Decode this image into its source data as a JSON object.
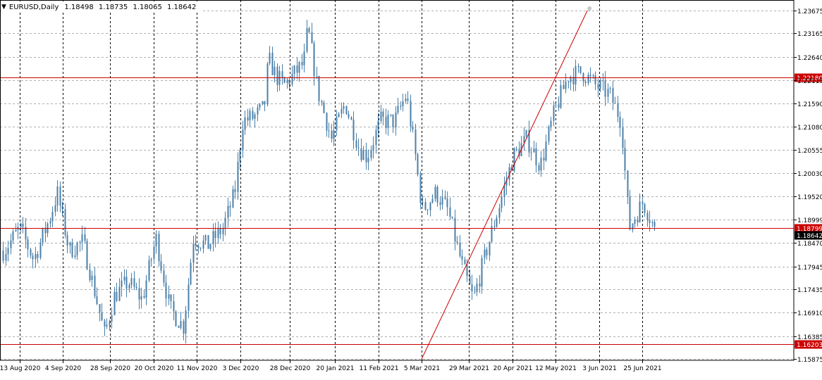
{
  "header": {
    "symbol": "EURUSD,Daily",
    "open": "1.18498",
    "high": "1.18735",
    "low": "1.18065",
    "close": "1.18642"
  },
  "chart_data": {
    "type": "candlestick",
    "symbol": "EURUSD",
    "timeframe": "Daily",
    "ylim": [
      1.15875,
      1.23675
    ],
    "grid": true,
    "y_ticks": [
      "1.23675",
      "1.23165",
      "1.22640",
      "1.22115",
      "1.21590",
      "1.21080",
      "1.20555",
      "1.20030",
      "1.19520",
      "1.18999",
      "1.18470",
      "1.17945",
      "1.17435",
      "1.16910",
      "1.16385",
      "1.15875"
    ],
    "x_ticks": [
      "13 Aug 2020",
      "4 Sep 2020",
      "28 Sep 2020",
      "20 Oct 2020",
      "11 Nov 2020",
      "3 Dec 2020",
      "28 Dec 2020",
      "20 Jan 2021",
      "11 Feb 2021",
      "5 Mar 2021",
      "29 Mar 2021",
      "20 Apr 2021",
      "12 May 2021",
      "3 Jun 2021",
      "25 Jun 2021"
    ],
    "horizontal_levels": [
      {
        "price": 1.2218,
        "label": "1.22180",
        "color": "#cc0000"
      },
      {
        "price": 1.18799,
        "label": "1.18799",
        "color": "#cc0000"
      },
      {
        "price": 1.16203,
        "label": "1.16203",
        "color": "#cc0000"
      }
    ],
    "current_price": {
      "price": 1.18642,
      "label": "1.18642"
    },
    "trendline": {
      "from": {
        "date": "2021-03-05",
        "price": 1.15875
      },
      "to": {
        "date": "2021-05-28",
        "price": 1.23675
      },
      "color": "#cc0000"
    },
    "path_points": [
      {
        "date": "2020-08-05",
        "price": 1.183
      },
      {
        "date": "2020-08-13",
        "price": 1.188
      },
      {
        "date": "2020-08-20",
        "price": 1.181
      },
      {
        "date": "2020-08-28",
        "price": 1.19
      },
      {
        "date": "2020-09-01",
        "price": 1.196
      },
      {
        "date": "2020-09-07",
        "price": 1.183
      },
      {
        "date": "2020-09-14",
        "price": 1.185
      },
      {
        "date": "2020-09-22",
        "price": 1.17
      },
      {
        "date": "2020-09-25",
        "price": 1.164
      },
      {
        "date": "2020-09-30",
        "price": 1.173
      },
      {
        "date": "2020-10-07",
        "price": 1.176
      },
      {
        "date": "2020-10-14",
        "price": 1.172
      },
      {
        "date": "2020-10-21",
        "price": 1.186
      },
      {
        "date": "2020-10-28",
        "price": 1.17
      },
      {
        "date": "2020-11-04",
        "price": 1.166
      },
      {
        "date": "2020-11-09",
        "price": 1.186
      },
      {
        "date": "2020-11-16",
        "price": 1.184
      },
      {
        "date": "2020-11-24",
        "price": 1.188
      },
      {
        "date": "2020-11-30",
        "price": 1.196
      },
      {
        "date": "2020-12-04",
        "price": 1.212
      },
      {
        "date": "2020-12-10",
        "price": 1.213
      },
      {
        "date": "2020-12-15",
        "price": 1.215
      },
      {
        "date": "2020-12-17",
        "price": 1.226
      },
      {
        "date": "2020-12-21",
        "price": 1.222
      },
      {
        "date": "2020-12-25",
        "price": 1.22
      },
      {
        "date": "2021-01-04",
        "price": 1.225
      },
      {
        "date": "2021-01-06",
        "price": 1.233
      },
      {
        "date": "2021-01-11",
        "price": 1.219
      },
      {
        "date": "2021-01-18",
        "price": 1.208
      },
      {
        "date": "2021-01-25",
        "price": 1.216
      },
      {
        "date": "2021-02-01",
        "price": 1.206
      },
      {
        "date": "2021-02-05",
        "price": 1.204
      },
      {
        "date": "2021-02-12",
        "price": 1.212
      },
      {
        "date": "2021-02-19",
        "price": 1.212
      },
      {
        "date": "2021-02-25",
        "price": 1.218
      },
      {
        "date": "2021-03-01",
        "price": 1.206
      },
      {
        "date": "2021-03-05",
        "price": 1.192
      },
      {
        "date": "2021-03-12",
        "price": 1.196
      },
      {
        "date": "2021-03-18",
        "price": 1.192
      },
      {
        "date": "2021-03-25",
        "price": 1.18
      },
      {
        "date": "2021-03-31",
        "price": 1.172
      },
      {
        "date": "2021-04-06",
        "price": 1.182
      },
      {
        "date": "2021-04-13",
        "price": 1.193
      },
      {
        "date": "2021-04-20",
        "price": 1.204
      },
      {
        "date": "2021-04-27",
        "price": 1.208
      },
      {
        "date": "2021-05-04",
        "price": 1.202
      },
      {
        "date": "2021-05-11",
        "price": 1.214
      },
      {
        "date": "2021-05-18",
        "price": 1.222
      },
      {
        "date": "2021-05-25",
        "price": 1.223
      },
      {
        "date": "2021-06-01",
        "price": 1.22
      },
      {
        "date": "2021-06-08",
        "price": 1.218
      },
      {
        "date": "2021-06-14",
        "price": 1.212
      },
      {
        "date": "2021-06-18",
        "price": 1.188
      },
      {
        "date": "2021-06-25",
        "price": 1.194
      },
      {
        "date": "2021-06-29",
        "price": 1.19
      },
      {
        "date": "2021-07-02",
        "price": 1.186
      }
    ]
  },
  "colors": {
    "candle": "#4a7fa8",
    "level": "#cc0000",
    "grid_x": "#000000",
    "grid_y": "#b0b0b0",
    "axis": "#000000",
    "current_bg": "#000000"
  }
}
